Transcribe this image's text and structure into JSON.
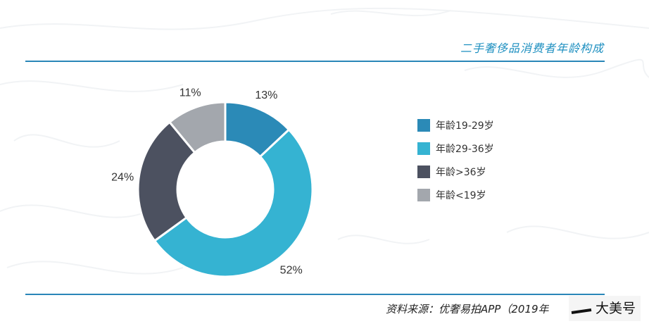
{
  "chart_data": {
    "type": "pie",
    "title": "二手奢侈品消费者年龄构成",
    "categories": [
      "年龄19-29岁",
      "年龄29-36岁",
      "年龄>36岁",
      "年龄<19岁"
    ],
    "values": [
      13,
      52,
      24,
      11
    ],
    "value_labels": [
      "13%",
      "52%",
      "24%",
      "11%"
    ],
    "colors": [
      "#2b8ab7",
      "#35b3d2",
      "#4c5160",
      "#a3a7ad"
    ],
    "donut": true,
    "legend_position": "right",
    "start_angle_deg": 0,
    "direction": "clockwise"
  },
  "source": "资料来源：优奢易拍APP（2019年",
  "watermark_text": "大美号"
}
